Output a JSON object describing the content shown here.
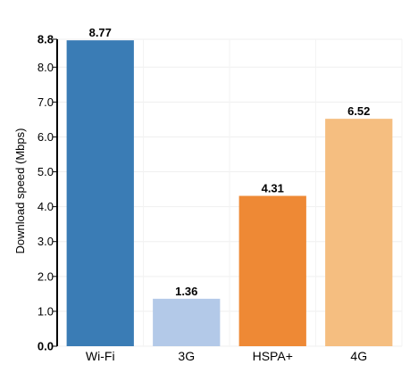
{
  "chart_data": {
    "type": "bar",
    "title": "",
    "xlabel": "",
    "ylabel": "Download speed (Mbps)",
    "categories": [
      "Wi-Fi",
      "3G",
      "HSPA+",
      "4G"
    ],
    "values": [
      8.77,
      1.36,
      4.31,
      6.52
    ],
    "data_labels": [
      "8.77",
      "1.36",
      "4.31",
      "6.52"
    ],
    "colors": [
      "#3a7cb5",
      "#b3c9e8",
      "#ee8935",
      "#f5be80"
    ],
    "ylim": [
      0,
      8.8
    ],
    "yticks": [
      "0.0",
      "1.0",
      "2.0",
      "3.0",
      "4.0",
      "5.0",
      "6.0",
      "7.0",
      "8.0",
      "8.8"
    ],
    "ytick_values": [
      0,
      1,
      2,
      3,
      4,
      5,
      6,
      7,
      8,
      8.8
    ],
    "grid": true,
    "legend": "none"
  }
}
